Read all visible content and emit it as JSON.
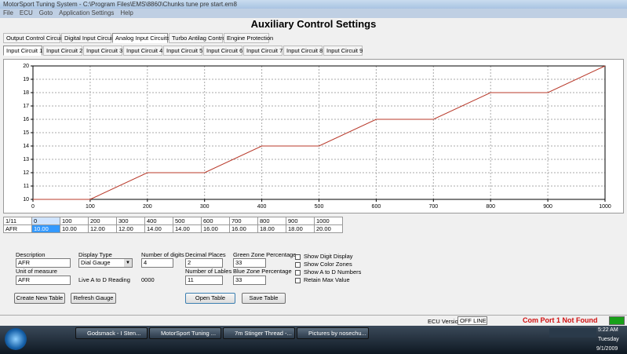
{
  "window": {
    "title": "MotorSport Tuning System - C:\\Program Files\\EMS\\8860\\Chunks tune pre start.em8",
    "menu": [
      "File",
      "ECU",
      "Goto",
      "Application Settings",
      "Help"
    ]
  },
  "heading": "Auxiliary Control Settings",
  "tabs": [
    "Output Control Circuits",
    "Digital Input Circuits",
    "Analog Input Circuits",
    "Turbo Antilag Control",
    "Engine Protection"
  ],
  "subtabs": [
    "Input Circuit 1",
    "Input Circuit 2",
    "Input Circuit 3",
    "Input Circuit 4",
    "Input Circuit 5",
    "Input Circuit 6",
    "Input Circuit 7",
    "Input Circuit 8",
    "Input Circuit 9"
  ],
  "chart_data": {
    "type": "line",
    "x": [
      0,
      100,
      200,
      300,
      400,
      500,
      600,
      700,
      800,
      900,
      1000
    ],
    "series": [
      {
        "color": "#b8392a",
        "values": [
          10,
          10,
          12,
          12,
          14,
          14,
          16,
          16,
          18,
          18,
          20
        ]
      }
    ],
    "xlim": [
      0,
      1000
    ],
    "ylim": [
      10,
      20
    ],
    "xticks": [
      0,
      100,
      200,
      300,
      400,
      500,
      600,
      700,
      800,
      900,
      1000
    ],
    "yticks": [
      10,
      11,
      12,
      13,
      14,
      15,
      16,
      17,
      18,
      19,
      20
    ],
    "grid": true
  },
  "table": {
    "rows": [
      [
        "1/11",
        "0",
        "100",
        "200",
        "300",
        "400",
        "500",
        "600",
        "700",
        "800",
        "900",
        "1000"
      ],
      [
        "AFR",
        "10.00",
        "10.00",
        "12.00",
        "12.00",
        "14.00",
        "14.00",
        "16.00",
        "16.00",
        "18.00",
        "18.00",
        "20.00"
      ]
    ]
  },
  "form": {
    "description": {
      "label": "Description",
      "value": "AFR"
    },
    "display_type": {
      "label": "Display Type",
      "value": "Dial Gauge"
    },
    "number_of_digits": {
      "label": "Number of digits",
      "value": "4"
    },
    "decimal_places": {
      "label": "Decimal Places",
      "value": "2"
    },
    "green_zone": {
      "label": "Green Zone Percentage",
      "value": "33"
    },
    "unit": {
      "label": "Unit of measure",
      "value": "AFR"
    },
    "live_reading": {
      "label": "Live A to D Reading",
      "value": "0000"
    },
    "number_of_labels": {
      "label": "Number of Lables",
      "value": "11"
    },
    "blue_zone": {
      "label": "Blue Zone Percentage",
      "value": "33"
    },
    "checkboxes": [
      "Show Digit Display",
      "Show Color Zones",
      "Show A to D Numbers",
      "Retain Max Value"
    ]
  },
  "buttons": [
    "Create New Table",
    "Refresh Gauge",
    "Open Table",
    "Save Table"
  ],
  "status": {
    "ecu_version_label": "ECU Version",
    "ecu_version": "OFF LINE",
    "message": "Com Port 1 Not Found"
  },
  "taskbar": {
    "items": [
      "Godsmack - I Sten...",
      "MotorSport Tuning ...",
      "7m Stinger Thread -...",
      "Pictures by nosechu..."
    ],
    "time": "5:22 AM",
    "day": "Tuesday",
    "date": "9/1/2009"
  }
}
